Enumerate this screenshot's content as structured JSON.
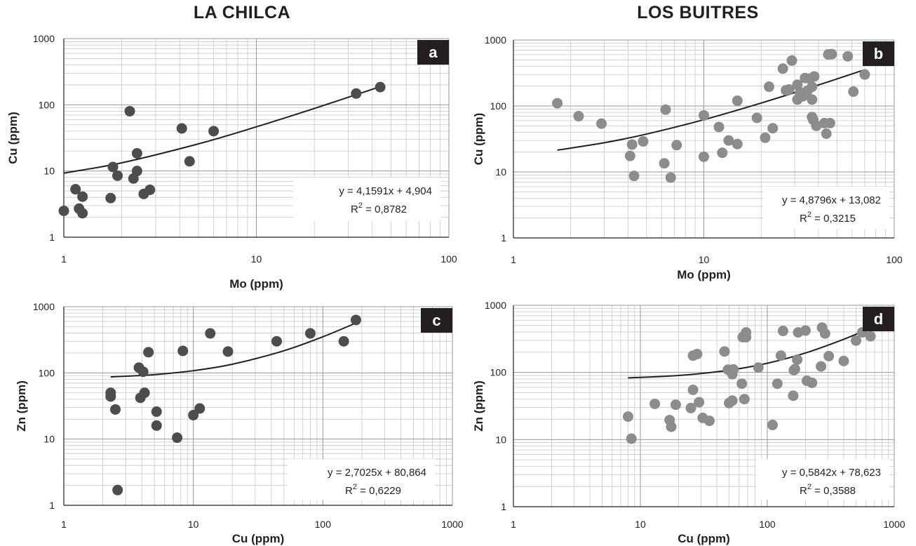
{
  "titles": {
    "left": "LA CHILCA",
    "right": "LOS BUITRES"
  },
  "colors": {
    "dark_points": "#4d4d4d",
    "light_points": "#8c8c8c",
    "trend": "#231f20",
    "grid": "#c8c8c8",
    "badge": "#231f20"
  },
  "chart_data": [
    {
      "id": "a",
      "type": "scatter",
      "panel_label": "a",
      "xlabel": "Mo (ppm)",
      "ylabel": "Cu (ppm)",
      "x_scale": "log",
      "y_scale": "log",
      "xlim": [
        1,
        100
      ],
      "ylim": [
        1,
        1000
      ],
      "x_ticks": [
        "1",
        "10",
        "100"
      ],
      "y_ticks": [
        "1",
        "10",
        "100",
        "1000"
      ],
      "grid": true,
      "point_color": "dark",
      "equation": "y = 4,1591x + 4,904",
      "r2_label": "R",
      "r2_value": " = 0,8782",
      "trend": [
        [
          1,
          9.3
        ],
        [
          2,
          13.3
        ],
        [
          5,
          25.7
        ],
        [
          10,
          46.5
        ],
        [
          20,
          88
        ],
        [
          44,
          188
        ]
      ],
      "points": [
        [
          1,
          2.5
        ],
        [
          1.15,
          5.3
        ],
        [
          1.2,
          2.7
        ],
        [
          1.25,
          2.3
        ],
        [
          1.25,
          4.1
        ],
        [
          1.75,
          3.9
        ],
        [
          1.8,
          11.5
        ],
        [
          1.9,
          8.5
        ],
        [
          2.2,
          80
        ],
        [
          2.3,
          7.7
        ],
        [
          2.4,
          18.5
        ],
        [
          2.4,
          10
        ],
        [
          2.6,
          4.5
        ],
        [
          2.8,
          5.2
        ],
        [
          4.1,
          44
        ],
        [
          4.5,
          14
        ],
        [
          6,
          40
        ],
        [
          33,
          148
        ],
        [
          44,
          185
        ]
      ]
    },
    {
      "id": "b",
      "type": "scatter",
      "panel_label": "b",
      "xlabel": "Mo (ppm)",
      "ylabel": "Cu (ppm)",
      "x_scale": "log",
      "y_scale": "log",
      "xlim": [
        1,
        100
      ],
      "ylim": [
        1,
        1000
      ],
      "x_ticks": [
        "1",
        "10",
        "100"
      ],
      "y_ticks": [
        "1",
        "10",
        "100",
        "1000"
      ],
      "grid": true,
      "point_color": "light",
      "equation": "y = 4,8796x + 13,082",
      "r2_label": "R",
      "r2_value": " = 0,3215",
      "trend": [
        [
          1.7,
          21.4
        ],
        [
          3,
          27.7
        ],
        [
          5,
          37.5
        ],
        [
          10,
          61.9
        ],
        [
          20,
          110.7
        ],
        [
          40,
          208
        ],
        [
          70,
          355
        ]
      ],
      "points": [
        [
          1.7,
          110
        ],
        [
          2.2,
          70
        ],
        [
          2.9,
          54
        ],
        [
          4.1,
          17.5
        ],
        [
          4.2,
          26
        ],
        [
          4.3,
          8.7
        ],
        [
          4.8,
          29
        ],
        [
          6.2,
          13.5
        ],
        [
          6.3,
          88
        ],
        [
          6.7,
          8.2
        ],
        [
          7.2,
          25.5
        ],
        [
          10,
          72
        ],
        [
          10,
          17
        ],
        [
          12,
          48
        ],
        [
          12.5,
          19.5
        ],
        [
          13.5,
          30
        ],
        [
          15,
          26.5
        ],
        [
          15,
          120
        ],
        [
          19,
          66
        ],
        [
          21,
          33
        ],
        [
          22,
          196
        ],
        [
          23,
          46
        ],
        [
          26,
          368
        ],
        [
          27,
          173
        ],
        [
          28,
          178
        ],
        [
          29,
          488
        ],
        [
          31,
          210
        ],
        [
          31,
          125
        ],
        [
          32,
          160
        ],
        [
          33,
          140
        ],
        [
          34,
          265
        ],
        [
          35,
          170
        ],
        [
          36,
          260
        ],
        [
          37,
          195
        ],
        [
          37,
          125
        ],
        [
          37,
          68
        ],
        [
          37.5,
          62
        ],
        [
          38,
          280
        ],
        [
          39,
          50
        ],
        [
          43,
          55
        ],
        [
          44,
          38
        ],
        [
          45,
          605
        ],
        [
          46,
          55
        ],
        [
          47,
          610
        ],
        [
          57,
          565
        ],
        [
          61,
          165
        ],
        [
          70,
          300
        ]
      ]
    },
    {
      "id": "c",
      "type": "scatter",
      "panel_label": "c",
      "xlabel": "Cu (ppm)",
      "ylabel": "Zn (ppm)",
      "x_scale": "log",
      "y_scale": "log",
      "xlim": [
        1,
        1000
      ],
      "ylim": [
        1,
        1000
      ],
      "x_ticks": [
        "1",
        "10",
        "100",
        "1000"
      ],
      "y_ticks": [
        "1",
        "10",
        "100",
        "1000"
      ],
      "grid": true,
      "point_color": "dark",
      "equation": "y = 2,7025x + 80,864",
      "r2_label": "R",
      "r2_value": " = 0,6229",
      "trend": [
        [
          2.3,
          87
        ],
        [
          5,
          94
        ],
        [
          10,
          108
        ],
        [
          20,
          135
        ],
        [
          50,
          216
        ],
        [
          100,
          351
        ],
        [
          180,
          567
        ]
      ],
      "points": [
        [
          2.3,
          50
        ],
        [
          2.3,
          44
        ],
        [
          2.5,
          28
        ],
        [
          2.6,
          1.7
        ],
        [
          3.8,
          120
        ],
        [
          3.9,
          42
        ],
        [
          4.1,
          104
        ],
        [
          4.2,
          50
        ],
        [
          4.5,
          205
        ],
        [
          5.2,
          26
        ],
        [
          5.2,
          16
        ],
        [
          7.5,
          10.5
        ],
        [
          8.3,
          215
        ],
        [
          10,
          23
        ],
        [
          11.2,
          29
        ],
        [
          13.5,
          395
        ],
        [
          18.5,
          210
        ],
        [
          44,
          300
        ],
        [
          80,
          395
        ],
        [
          145,
          300
        ],
        [
          180,
          630
        ]
      ]
    },
    {
      "id": "d",
      "type": "scatter",
      "panel_label": "d",
      "xlabel": "Cu (ppm)",
      "ylabel": "Zn (ppm)",
      "x_scale": "log",
      "y_scale": "log",
      "xlim": [
        1,
        1000
      ],
      "ylim": [
        1,
        1000
      ],
      "x_ticks": [
        "1",
        "10",
        "100",
        "1000"
      ],
      "y_ticks": [
        "1",
        "10",
        "100",
        "1000"
      ],
      "grid": true,
      "point_color": "light",
      "equation": "y = 0,5842x + 78,623",
      "r2_label": "R",
      "r2_value": " = 0,3588",
      "trend": [
        [
          8,
          83
        ],
        [
          20,
          90
        ],
        [
          50,
          108
        ],
        [
          100,
          137
        ],
        [
          200,
          195
        ],
        [
          400,
          312
        ],
        [
          650,
          458
        ]
      ],
      "points": [
        [
          8,
          22
        ],
        [
          8.5,
          10.3
        ],
        [
          13,
          34
        ],
        [
          17,
          19.5
        ],
        [
          17.5,
          15.5
        ],
        [
          19,
          33
        ],
        [
          25,
          29.5
        ],
        [
          26,
          55
        ],
        [
          26,
          178
        ],
        [
          28,
          188
        ],
        [
          29,
          36
        ],
        [
          31,
          21
        ],
        [
          35,
          19
        ],
        [
          46,
          205
        ],
        [
          49,
          110
        ],
        [
          50,
          35
        ],
        [
          53,
          38
        ],
        [
          53,
          94
        ],
        [
          54,
          111
        ],
        [
          63,
          68
        ],
        [
          64,
          335
        ],
        [
          66,
          40
        ],
        [
          68,
          395
        ],
        [
          68,
          335
        ],
        [
          85,
          118
        ],
        [
          110,
          16.5
        ],
        [
          120,
          68
        ],
        [
          128,
          178
        ],
        [
          133,
          415
        ],
        [
          160,
          45
        ],
        [
          162,
          108
        ],
        [
          165,
          112
        ],
        [
          172,
          155
        ],
        [
          175,
          395
        ],
        [
          200,
          420
        ],
        [
          205,
          75
        ],
        [
          225,
          70
        ],
        [
          265,
          123
        ],
        [
          270,
          465
        ],
        [
          285,
          380
        ],
        [
          305,
          175
        ],
        [
          400,
          148
        ],
        [
          500,
          298
        ],
        [
          560,
          395
        ],
        [
          650,
          345
        ]
      ]
    }
  ]
}
